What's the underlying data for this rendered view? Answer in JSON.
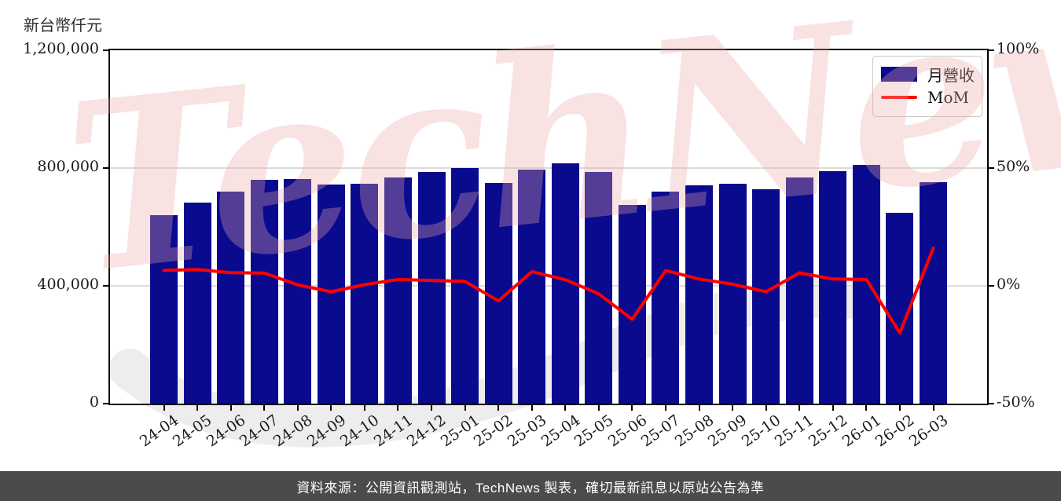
{
  "page": {
    "y_axis_title": "新台幣仟元",
    "watermark": "TechNews",
    "footer": "資料來源：公開資訊觀測站，TechNews 製表，確切最新訊息以原站公告為準"
  },
  "colors": {
    "bar": "#0a0a8f",
    "mom_line": "#ff0000",
    "grid": "#dbdbdb",
    "axis": "#000000",
    "footer_bg": "#4b4b4b",
    "footer_text": "#ffffff",
    "watermark_pink": "rgba(236,168,168,0.33)",
    "watermark_gray": "#ededed"
  },
  "chart_data": {
    "type": "bar",
    "subtype": "bar+line dual axis",
    "title": "",
    "legend_position": "top-right inside plot",
    "grid": "horizontal gridlines at left-axis 400,000 and 800,000",
    "categories": [
      "24-04",
      "24-05",
      "24-06",
      "24-07",
      "24-08",
      "24-09",
      "24-10",
      "24-11",
      "24-12",
      "25-01",
      "25-02",
      "25-03",
      "25-04",
      "25-05",
      "25-06",
      "25-07",
      "25-08",
      "25-09",
      "25-10",
      "25-11",
      "25-12",
      "26-01",
      "26-02",
      "26-03"
    ],
    "series": [
      {
        "name": "月營收",
        "type": "bar",
        "axis": "left",
        "color": "#0a0a8f",
        "values": [
          639000,
          683000,
          721000,
          760000,
          763000,
          744000,
          748000,
          768000,
          786000,
          801000,
          750000,
          795000,
          816000,
          788000,
          676000,
          720000,
          741000,
          746000,
          727000,
          767000,
          789000,
          810000,
          648000,
          752000
        ]
      },
      {
        "name": "MoM",
        "type": "line",
        "axis": "right",
        "color": "#ff0000",
        "values": [
          6.6,
          6.9,
          5.6,
          5.4,
          0.4,
          -2.5,
          0.5,
          2.7,
          2.3,
          1.9,
          -6.4,
          6.0,
          2.6,
          -3.4,
          -14.2,
          6.5,
          2.9,
          0.7,
          -2.5,
          5.5,
          2.9,
          2.7,
          -20.0,
          16.0
        ]
      }
    ],
    "left_axis": {
      "title": "新台幣仟元",
      "min": 0,
      "max": 1200000,
      "ticks": [
        {
          "value": 1200000,
          "label": "1,200,000"
        },
        {
          "value": 800000,
          "label": "800,000"
        },
        {
          "value": 400000,
          "label": "400,000"
        },
        {
          "value": 0,
          "label": "0"
        }
      ]
    },
    "right_axis": {
      "min": -50,
      "max": 100,
      "ticks": [
        {
          "value": 100,
          "label": "100%"
        },
        {
          "value": 50,
          "label": "50%"
        },
        {
          "value": 0,
          "label": "0%"
        },
        {
          "value": -50,
          "label": "-50%"
        }
      ]
    },
    "gridlines_at_left_values": [
      800000,
      400000
    ],
    "legend_entries": [
      "月營收",
      "MoM"
    ]
  }
}
